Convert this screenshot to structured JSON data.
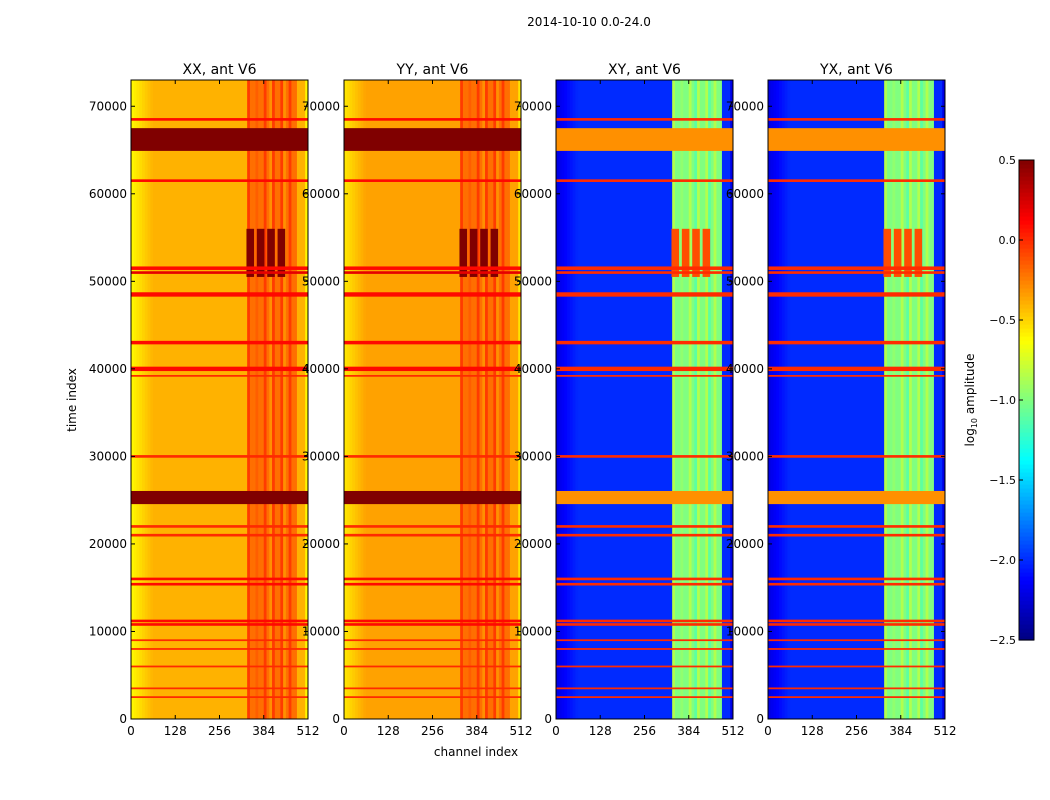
{
  "chart_data": {
    "type": "heatmap",
    "title": "2014-10-10 0.0-24.0",
    "xlabel": "channel index",
    "ylabel": "time index",
    "xlim": [
      0,
      512
    ],
    "ylim": [
      0,
      73000
    ],
    "xticks": [
      0,
      128,
      256,
      384,
      512
    ],
    "yticks": [
      0,
      10000,
      20000,
      30000,
      40000,
      50000,
      60000,
      70000
    ],
    "colormap": "jet",
    "colorbar": {
      "label_prefix": "log",
      "label_sub": "10",
      "label_suffix": " amplitude",
      "range": [
        -2.5,
        0.5
      ],
      "ticks": [
        "0.5",
        "0.0",
        "−0.5",
        "−1.0",
        "−1.5",
        "−2.0",
        "−2.5"
      ],
      "tick_values": [
        0.5,
        0.0,
        -0.5,
        -1.0,
        -1.5,
        -2.0,
        -2.5
      ]
    },
    "panels": [
      {
        "title": "XX, ant V6",
        "base": -0.4,
        "edge": -0.6,
        "band_channels": [
          330,
          480
        ],
        "band_value": -0.2,
        "burst_value": 0.5
      },
      {
        "title": "YY, ant V6",
        "base": -0.35,
        "edge": -0.55,
        "band_channels": [
          330,
          480
        ],
        "band_value": -0.2,
        "burst_value": 0.5
      },
      {
        "title": "XY, ant V6",
        "base": -2.0,
        "edge": -2.2,
        "band_channels": [
          330,
          480
        ],
        "band_value": -1.0,
        "burst_value": -0.1
      },
      {
        "title": "YX, ant V6",
        "base": -2.0,
        "edge": -2.2,
        "band_channels": [
          330,
          480
        ],
        "band_value": -1.0,
        "burst_value": -0.1
      }
    ],
    "rfi_rows": [
      {
        "t": 68500,
        "w": 300,
        "v": 0.1
      },
      {
        "t": 66200,
        "w": 2600,
        "v": 0.5
      },
      {
        "t": 61500,
        "w": 300,
        "v": 0.1
      },
      {
        "t": 51500,
        "w": 400,
        "v": 0.1
      },
      {
        "t": 51000,
        "w": 300,
        "v": 0.2
      },
      {
        "t": 48500,
        "w": 500,
        "v": 0.1
      },
      {
        "t": 43000,
        "w": 400,
        "v": 0.1
      },
      {
        "t": 40000,
        "w": 500,
        "v": 0.1
      },
      {
        "t": 39200,
        "w": 200,
        "v": 0.0
      },
      {
        "t": 30000,
        "w": 300,
        "v": 0.0
      },
      {
        "t": 25300,
        "w": 1500,
        "v": 0.5
      },
      {
        "t": 22000,
        "w": 300,
        "v": 0.0
      },
      {
        "t": 21000,
        "w": 300,
        "v": 0.0
      },
      {
        "t": 16000,
        "w": 300,
        "v": 0.1
      },
      {
        "t": 15400,
        "w": 300,
        "v": 0.1
      },
      {
        "t": 11200,
        "w": 300,
        "v": 0.1
      },
      {
        "t": 10800,
        "w": 300,
        "v": 0.1
      },
      {
        "t": 9000,
        "w": 200,
        "v": 0.0
      },
      {
        "t": 8000,
        "w": 200,
        "v": 0.0
      },
      {
        "t": 6000,
        "w": 200,
        "v": 0.0
      },
      {
        "t": 3500,
        "w": 200,
        "v": 0.0
      },
      {
        "t": 2500,
        "w": 200,
        "v": 0.0
      }
    ],
    "bursts": [
      {
        "t_range": [
          50500,
          57000
        ]
      }
    ]
  }
}
